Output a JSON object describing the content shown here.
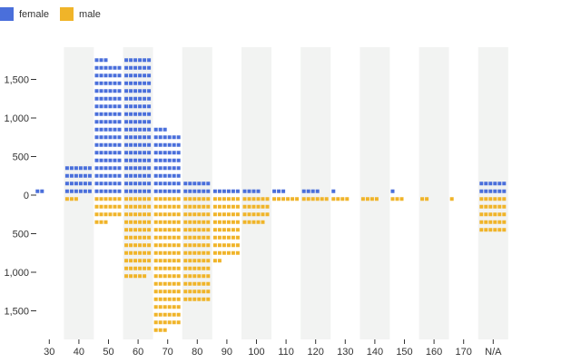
{
  "chart_data": {
    "type": "bar",
    "title": "",
    "xlabel": "",
    "ylabel": "",
    "categories": [
      "30",
      "40",
      "50",
      "60",
      "70",
      "80",
      "90",
      "100",
      "110",
      "120",
      "130",
      "140",
      "150",
      "160",
      "170",
      "N/A"
    ],
    "legend": {
      "placement": "top-left"
    },
    "series": [
      {
        "name": "female",
        "color": "#4a6fdb",
        "direction": "up",
        "values": [
          40,
          400,
          1750,
          1800,
          850,
          200,
          100,
          60,
          50,
          60,
          20,
          0,
          5,
          0,
          0,
          200
        ]
      },
      {
        "name": "male",
        "color": "#f0b429",
        "direction": "down",
        "values": [
          0,
          50,
          350,
          1090,
          1750,
          1400,
          830,
          380,
          100,
          100,
          60,
          60,
          50,
          30,
          10,
          500
        ]
      }
    ],
    "ylim": [
      -1800,
      1800
    ],
    "yticks": [
      {
        "value": 1500,
        "label": "1,500"
      },
      {
        "value": 1000,
        "label": "1,000"
      },
      {
        "value": 500,
        "label": "500"
      },
      {
        "value": 0,
        "label": "0"
      },
      {
        "value": -500,
        "label": "500"
      },
      {
        "value": -1000,
        "label": "1,000"
      },
      {
        "value": -1500,
        "label": "1,500"
      }
    ],
    "shaded_bands": [
      "40",
      "60",
      "80",
      "100",
      "120",
      "140",
      "160",
      "N/A"
    ],
    "grid": false,
    "band_color": "#f2f3f2"
  }
}
